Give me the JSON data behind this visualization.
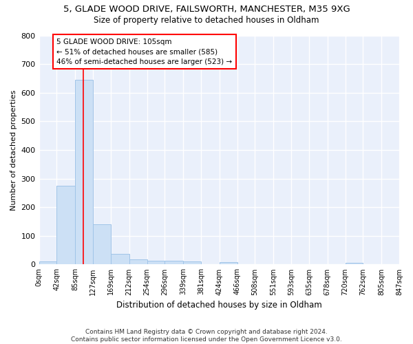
{
  "title1": "5, GLADE WOOD DRIVE, FAILSWORTH, MANCHESTER, M35 9XG",
  "title2": "Size of property relative to detached houses in Oldham",
  "xlabel": "Distribution of detached houses by size in Oldham",
  "ylabel": "Number of detached properties",
  "footnote": "Contains HM Land Registry data © Crown copyright and database right 2024.\nContains public sector information licensed under the Open Government Licence v3.0.",
  "bar_edges": [
    0,
    42,
    85,
    127,
    169,
    212,
    254,
    296,
    339,
    381,
    424,
    466,
    508,
    551,
    593,
    635,
    678,
    720,
    762,
    805,
    847
  ],
  "bar_heights": [
    10,
    275,
    645,
    140,
    38,
    18,
    13,
    13,
    10,
    0,
    8,
    0,
    0,
    0,
    0,
    0,
    0,
    7,
    0,
    0
  ],
  "bar_color": "#cce0f5",
  "bar_edge_color": "#a0c4e8",
  "red_line_x": 105,
  "annotation_line1": "5 GLADE WOOD DRIVE: 105sqm",
  "annotation_line2": "← 51% of detached houses are smaller (585)",
  "annotation_line3": "46% of semi-detached houses are larger (523) →",
  "annotation_box_color": "white",
  "annotation_box_edge": "red",
  "ylim": [
    0,
    800
  ],
  "yticks": [
    0,
    100,
    200,
    300,
    400,
    500,
    600,
    700,
    800
  ],
  "bg_color": "#eaf0fb",
  "grid_color": "white",
  "tick_labels": [
    "0sqm",
    "42sqm",
    "85sqm",
    "127sqm",
    "169sqm",
    "212sqm",
    "254sqm",
    "296sqm",
    "339sqm",
    "381sqm",
    "424sqm",
    "466sqm",
    "508sqm",
    "551sqm",
    "593sqm",
    "635sqm",
    "678sqm",
    "720sqm",
    "762sqm",
    "805sqm",
    "847sqm"
  ],
  "title1_fontsize": 9.5,
  "title2_fontsize": 8.5,
  "xlabel_fontsize": 8.5,
  "ylabel_fontsize": 8,
  "tick_fontsize": 7,
  "footnote_fontsize": 6.5
}
